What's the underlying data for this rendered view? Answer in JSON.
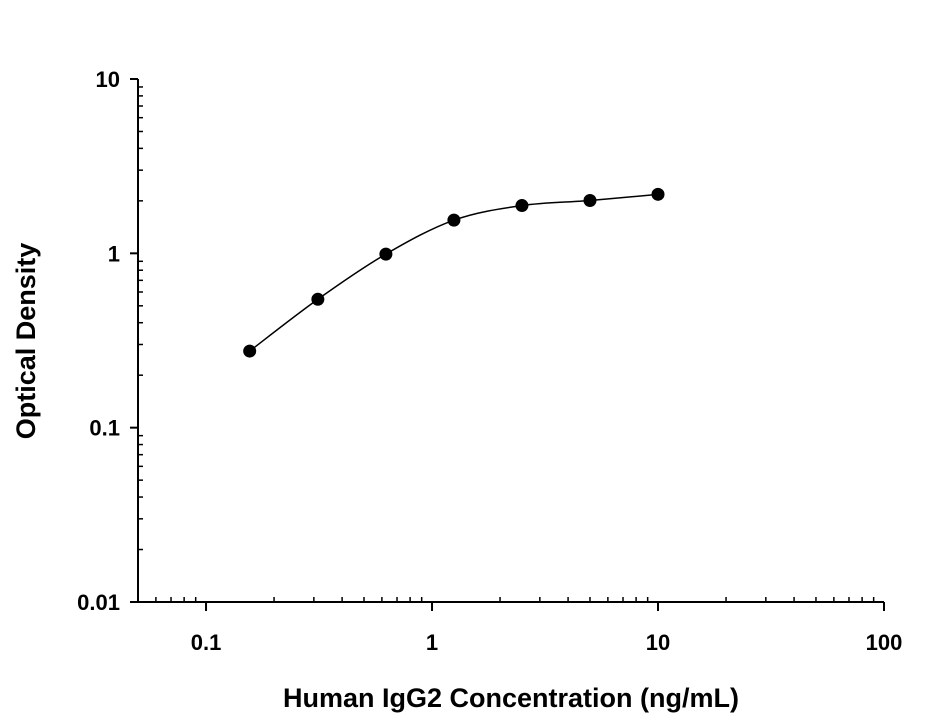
{
  "chart_data": {
    "type": "scatter",
    "title": "",
    "xlabel": "Human IgG2 Concentration (ng/mL)",
    "ylabel": "Optical Density",
    "xscale": "log",
    "yscale": "log",
    "xlim": [
      0.05,
      100
    ],
    "ylim": [
      0.01,
      10
    ],
    "xticks": [
      0.1,
      1,
      10,
      100
    ],
    "xtick_labels": [
      "0.1",
      "1",
      "10",
      "100"
    ],
    "yticks": [
      0.01,
      0.1,
      1,
      10
    ],
    "ytick_labels": [
      "0.01",
      "0.1",
      "1",
      "10"
    ],
    "grid": false,
    "legend": "none",
    "marker_color": "#000000",
    "line_color": "#000000",
    "fit_curve": true,
    "series": [
      {
        "x": [
          0.156,
          0.3125,
          0.625,
          1.25,
          2.5,
          5,
          10
        ],
        "y": [
          0.275,
          0.545,
          0.99,
          1.55,
          1.88,
          2.01,
          2.18
        ]
      }
    ]
  }
}
